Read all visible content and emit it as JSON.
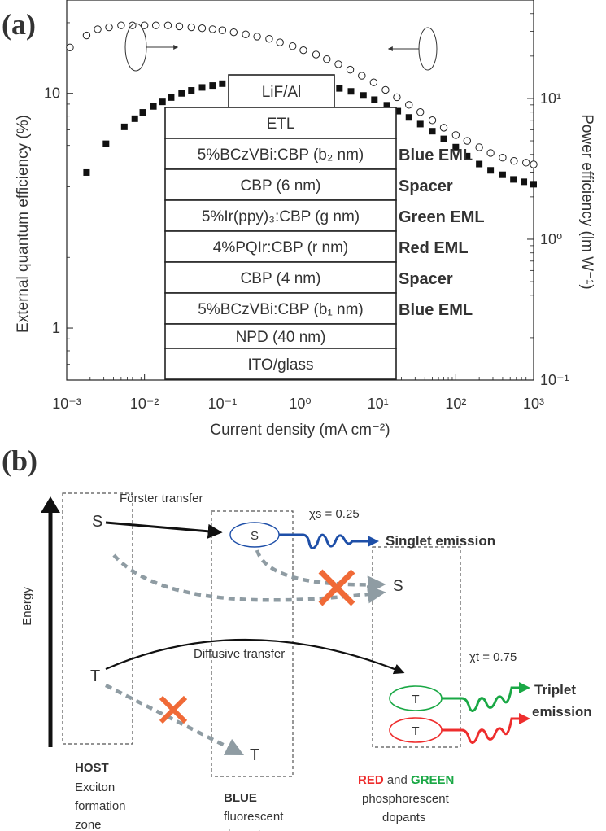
{
  "panel_a": {
    "label": "(a)",
    "chart_data": {
      "type": "scatter",
      "xlabel": "Current density (mA cm⁻²)",
      "ylabel_left": "External quantum efficiency (%)",
      "ylabel_right": "Power efficiency (lm W⁻¹)",
      "x_scale": "log",
      "y_scale": "log",
      "xlim": [
        0.001,
        1000
      ],
      "ylim_left": [
        0.6,
        25
      ],
      "ylim_right": [
        0.1,
        50
      ],
      "x_ticks": [
        "10⁻³",
        "10⁻²",
        "10⁻¹",
        "10⁰",
        "10¹",
        "10²",
        "10³"
      ],
      "y_ticks_left": [
        "1",
        "10"
      ],
      "y_ticks_right": [
        "10⁻¹",
        "10⁰",
        "10¹"
      ],
      "grid": false,
      "series": [
        {
          "axis": "left",
          "marker": "filled-square",
          "x": [
            0.0018,
            0.0032,
            0.0055,
            0.0075,
            0.0095,
            0.013,
            0.017,
            0.022,
            0.03,
            0.04,
            0.055,
            0.075,
            0.1,
            0.14,
            0.2,
            0.3,
            0.45,
            0.7,
            1,
            1.5,
            2.2,
            3.2,
            4.5,
            6.5,
            9,
            13,
            18,
            25,
            35,
            50,
            70,
            100,
            140,
            200,
            280,
            400,
            550,
            750,
            1000
          ],
          "values": [
            4.6,
            6.1,
            7.2,
            7.8,
            8.3,
            8.8,
            9.2,
            9.6,
            10.0,
            10.3,
            10.6,
            10.8,
            11.0,
            11.1,
            11.2,
            11.2,
            11.2,
            11.2,
            11.1,
            11.0,
            10.8,
            10.5,
            10.2,
            9.8,
            9.4,
            8.9,
            8.4,
            7.9,
            7.4,
            6.9,
            6.4,
            5.9,
            5.4,
            5.0,
            4.7,
            4.5,
            4.3,
            4.2,
            4.1
          ]
        },
        {
          "axis": "right",
          "marker": "open-circle",
          "x": [
            0.0011,
            0.0018,
            0.0025,
            0.0035,
            0.005,
            0.007,
            0.01,
            0.014,
            0.02,
            0.028,
            0.04,
            0.055,
            0.075,
            0.1,
            0.14,
            0.2,
            0.28,
            0.4,
            0.55,
            0.8,
            1.1,
            1.6,
            2.2,
            3.1,
            4.4,
            6.2,
            8.8,
            12.5,
            17.5,
            25,
            35,
            50,
            70,
            100,
            140,
            200,
            280,
            400,
            560,
            800,
            1000
          ],
          "values": [
            23,
            28,
            31,
            32,
            33,
            33,
            33,
            33,
            33,
            32.5,
            32,
            31.5,
            31,
            30.5,
            29.5,
            28.5,
            27.5,
            26.5,
            25,
            23.5,
            22,
            20.5,
            19,
            17.5,
            16,
            14.5,
            13,
            11.5,
            10.2,
            9,
            8,
            7,
            6.2,
            5.5,
            5,
            4.5,
            4.1,
            3.8,
            3.6,
            3.5,
            3.4
          ]
        }
      ]
    },
    "device_stack": [
      {
        "text": "LiF/Al",
        "label": "",
        "color": ""
      },
      {
        "text": "ETL",
        "label": "",
        "color": ""
      },
      {
        "text": "5%BCzVBi:CBP (b₂ nm)",
        "label": "Blue EML",
        "color": "#20b4e8"
      },
      {
        "text": "CBP (6 nm)",
        "label": "Spacer",
        "color": "#8e3fb0"
      },
      {
        "text": "5%Ir(ppy)₃:CBP (g nm)",
        "label": "Green EML",
        "color": "#17a84a"
      },
      {
        "text": "4%PQIr:CBP (r nm)",
        "label": "Red EML",
        "color": "#ee1c24"
      },
      {
        "text": "CBP (4 nm)",
        "label": "Spacer",
        "color": "#8e3fb0"
      },
      {
        "text": "5%BCzVBi:CBP (b₁ nm)",
        "label": "Blue EML",
        "color": "#20b4e8"
      },
      {
        "text": "NPD (40 nm)",
        "label": "",
        "color": ""
      },
      {
        "text": "ITO/glass",
        "label": "",
        "color": ""
      }
    ]
  },
  "panel_b": {
    "label": "(b)",
    "energy_label": "Energy",
    "forster": "Förster transfer",
    "diffusive": "Diffusive transfer",
    "chi_s": "χs = 0.25",
    "chi_t": "χt = 0.75",
    "host_S": "S",
    "host_T": "T",
    "blue_S": "S",
    "blue_T": "T",
    "phos_S": "S",
    "green_T": "T",
    "red_T": "T",
    "singlet_emission": "Singlet emission",
    "triplet_emission_1": "Triplet",
    "triplet_emission_2": "emission",
    "host_label": "HOST",
    "host_desc": [
      "Exciton",
      "formation",
      "zone"
    ],
    "blue_label": "BLUE",
    "blue_desc": [
      "fluorescent",
      "dopant"
    ],
    "red_word": "RED",
    "and_word": " and ",
    "green_word": "GREEN",
    "phos_desc": [
      "phosphorescent",
      "dopants"
    ],
    "colors": {
      "blue_dopant": "#1e4fa8",
      "blue_text": "#1f5fb8",
      "green": "#1aa845",
      "red": "#ee2d2d",
      "cross": "#f06a37",
      "dashed_arrow": "#8f9ca3",
      "emission_text": "#0a1ed2"
    }
  }
}
